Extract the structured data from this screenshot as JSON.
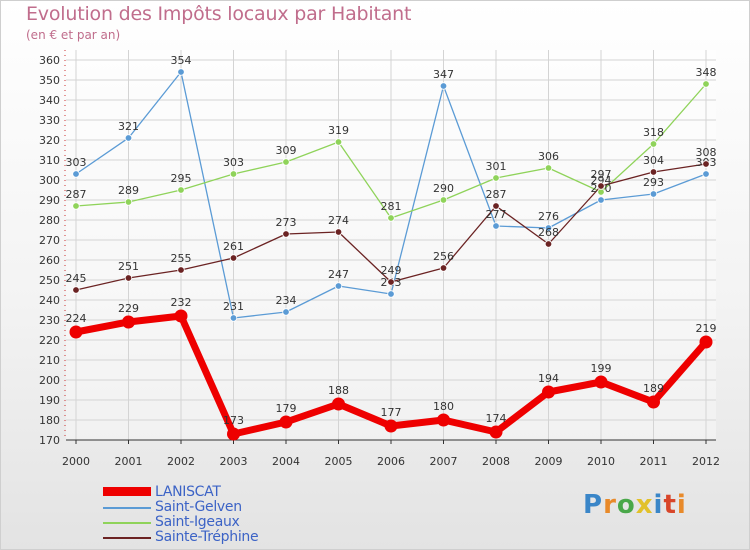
{
  "chart_data": {
    "type": "line",
    "title": "Evolution des Impôts locaux par Habitant",
    "subtitle": "(en € et par an)",
    "x": [
      "2000",
      "2001",
      "2002",
      "2003",
      "2004",
      "2005",
      "2006",
      "2007",
      "2008",
      "2009",
      "2010",
      "2011",
      "2012"
    ],
    "y_ticks": [
      170,
      180,
      190,
      200,
      210,
      220,
      230,
      240,
      250,
      260,
      270,
      280,
      290,
      300,
      310,
      320,
      330,
      340,
      350,
      360
    ],
    "ylim": [
      170,
      360
    ],
    "grid": true,
    "series": [
      {
        "name": "LANISCAT",
        "color": "#ee0000",
        "values": [
          224,
          229,
          232,
          173,
          179,
          188,
          177,
          180,
          174,
          194,
          199,
          189,
          219
        ]
      },
      {
        "name": "Saint-Gelven",
        "color": "#5b9bd5",
        "values": [
          303,
          321,
          354,
          231,
          234,
          247,
          243,
          347,
          277,
          276,
          290,
          293,
          303
        ]
      },
      {
        "name": "Saint-Igeaux",
        "color": "#8fd35a",
        "values": [
          287,
          289,
          295,
          303,
          309,
          319,
          281,
          290,
          301,
          306,
          294,
          318,
          348
        ]
      },
      {
        "name": "Sainte-Tréphine",
        "color": "#6b2323",
        "values": [
          245,
          251,
          255,
          261,
          273,
          274,
          249,
          256,
          287,
          268,
          297,
          304,
          308
        ]
      }
    ]
  },
  "point_labels": {
    "LANISCAT": [
      "224",
      "229",
      "232",
      "173",
      "179",
      "188",
      "177",
      "180",
      "174",
      "194",
      "199",
      "189",
      "219"
    ],
    "Saint-Gelven": [
      "303",
      "321",
      "354",
      "231",
      "234",
      "247",
      "243",
      "347",
      "277",
      "276",
      "290",
      "293",
      "303"
    ],
    "Saint-Igeaux": [
      "287",
      "289",
      "295",
      "303",
      "309",
      "319",
      "281",
      "290",
      "301",
      "306",
      "294",
      "318",
      "348"
    ],
    "Sainte-Tréphine": [
      "245",
      "251",
      "255",
      "261",
      "273",
      "274",
      "249",
      "256",
      "287",
      "268",
      "297",
      "304",
      "308"
    ]
  },
  "legend": [
    "LANISCAT",
    "Saint-Gelven",
    "Saint-Igeaux",
    "Sainte-Tréphine"
  ],
  "brand": {
    "letters": [
      "P",
      "r",
      "o",
      "x",
      "i",
      "t",
      "i"
    ],
    "colors": [
      "#3a86c8",
      "#e88a2a",
      "#4aa84a",
      "#e2c12a",
      "#3a86c8",
      "#d8462a",
      "#e88a2a"
    ]
  }
}
